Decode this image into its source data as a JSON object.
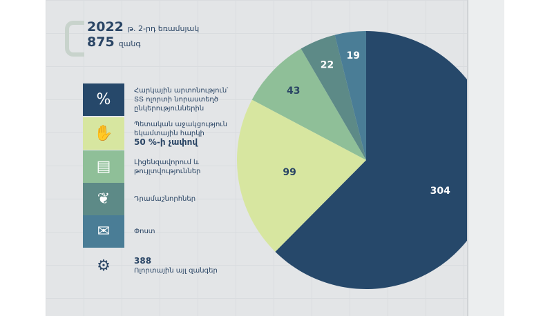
{
  "header": {
    "year": "2022",
    "period": "թ. 2-րդ եռամսյակ",
    "total": "875",
    "total_unit": "զանգ"
  },
  "legend": [
    {
      "label": "Հարկային արտոնություն՝ ՏՏ ոլորտի նորաստեղծ ընկերություններին",
      "icon": "money-bag-percent-icon",
      "color": "#26486a"
    },
    {
      "label": "Պետական աջակցություն եկամտային հարկի",
      "label_bold": "50 %-ի չափով",
      "icon": "hand-coin-icon",
      "color": "#d7e6a0"
    },
    {
      "label": "Լիցենզավորում և թույլտվություններ",
      "icon": "certificate-icon",
      "color": "#8fbf98"
    },
    {
      "label": "Դրամաշնորհներ",
      "icon": "grant-document-icon",
      "color": "#5d8a87"
    },
    {
      "label": "Փոստ",
      "icon": "mailbox-icon",
      "color": "#4a7d96"
    },
    {
      "value": "388",
      "label": "Ոլորտային այլ զանգեր",
      "icon": "gear-circuit-icon"
    }
  ],
  "chart_data": {
    "type": "pie",
    "values": [
      304,
      99,
      43,
      22,
      19
    ],
    "labels": [
      "304",
      "99",
      "43",
      "22",
      "19"
    ],
    "colors": [
      "#26486a",
      "#d7e6a0",
      "#8fbf98",
      "#5d8a87",
      "#4a7d96"
    ],
    "label_colors": [
      "#ffffff",
      "#2a4565",
      "#2a4565",
      "#ffffff",
      "#ffffff"
    ]
  }
}
